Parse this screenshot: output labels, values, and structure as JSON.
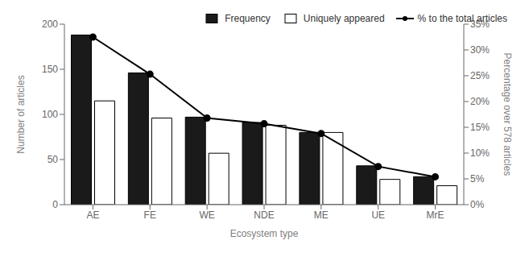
{
  "chart_data": {
    "type": "bar",
    "categories": [
      "AE",
      "FE",
      "WE",
      "NDE",
      "ME",
      "UE",
      "MrE"
    ],
    "xlabel": "Ecosystem type",
    "ylabel": "Number of articles",
    "y2label": "Percentage over 578 articles",
    "ylim": [
      0,
      200
    ],
    "yticks": [
      0,
      50,
      100,
      150,
      200
    ],
    "y2lim": [
      0,
      0.35
    ],
    "y2ticks": [
      {
        "value": 0,
        "label": "0%"
      },
      {
        "value": 0.05,
        "label": "5%"
      },
      {
        "value": 0.1,
        "label": "10%"
      },
      {
        "value": 0.15,
        "label": "15%"
      },
      {
        "value": 0.2,
        "label": "20%"
      },
      {
        "value": 0.25,
        "label": "25%"
      },
      {
        "value": 0.3,
        "label": "30%"
      },
      {
        "value": 0.35,
        "label": "35%"
      }
    ],
    "legend": "upper right",
    "series": [
      {
        "name": "Frequency",
        "color": "#1a1a1a",
        "values": [
          188,
          146,
          97,
          91,
          80,
          43,
          31
        ]
      },
      {
        "name": "Uniquely appeared",
        "color": "#ffffff",
        "values": [
          115,
          96,
          57,
          88,
          80,
          28,
          21
        ]
      },
      {
        "name": "% to the total articles",
        "type": "line",
        "axis": "y2",
        "color": "#000000",
        "marker": "circle",
        "values": [
          0.325,
          0.253,
          0.168,
          0.157,
          0.138,
          0.074,
          0.054
        ]
      }
    ]
  }
}
